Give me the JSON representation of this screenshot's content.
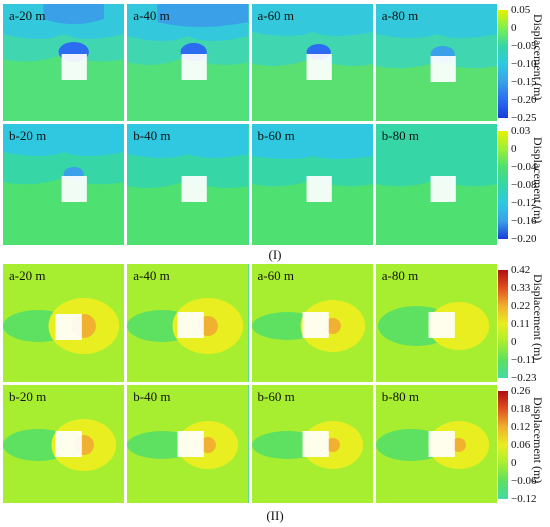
{
  "sections": [
    {
      "id": "I",
      "label": "(I)",
      "colorbar": {
        "title": "Displacement (m)",
        "ticks": [
          "0.05",
          "0",
          "−0.05",
          "−0.10",
          "−0.15",
          "−0.20",
          "−0.25"
        ],
        "colors": [
          "#e8f000",
          "#7df050",
          "#36d6a6",
          "#30c8e0",
          "#3aa0e8",
          "#2b6cf0",
          "#1a3cd8"
        ]
      },
      "rows": [
        {
          "panels": [
            "a-20 m",
            "a-40 m",
            "a-60 m",
            "a-80 m"
          ]
        },
        {
          "panels": [
            "b-20 m",
            "b-40 m",
            "b-60 m",
            "b-80 m"
          ]
        }
      ],
      "second_colorbar": {
        "title": "Displacement (m)",
        "ticks": [
          "0.03",
          "0",
          "−0.04",
          "−0.08",
          "−0.12",
          "−0.16",
          "−0.20"
        ],
        "colors": [
          "#e8f000",
          "#9cf03a",
          "#4ee070",
          "#36d6a6",
          "#30c8e0",
          "#3aa0e8",
          "#1a3cd8"
        ]
      }
    },
    {
      "id": "II",
      "label": "(II)",
      "colorbar": {
        "title": "Displacement (m)",
        "ticks": [
          "0.42",
          "0.33",
          "0.22",
          "0.11",
          "0",
          "−0.11",
          "−0.23"
        ],
        "colors": [
          "#b01010",
          "#e05020",
          "#f0b030",
          "#e8ee20",
          "#a8ee30",
          "#5ee060",
          "#44d9a8"
        ]
      },
      "rows": [
        {
          "panels": [
            "a-20 m",
            "a-40 m",
            "a-60 m",
            "a-80 m"
          ]
        },
        {
          "panels": [
            "b-20 m",
            "b-40 m",
            "b-60 m",
            "b-80 m"
          ]
        }
      ],
      "second_colorbar": {
        "title": "Displacement (m)",
        "ticks": [
          "0.26",
          "0.18",
          "0.12",
          "0.06",
          "0",
          "−0.06",
          "−0.12"
        ],
        "colors": [
          "#b01010",
          "#e05020",
          "#f0b030",
          "#e8ee20",
          "#a8ee30",
          "#5ee060",
          "#44d9a8"
        ]
      }
    }
  ]
}
